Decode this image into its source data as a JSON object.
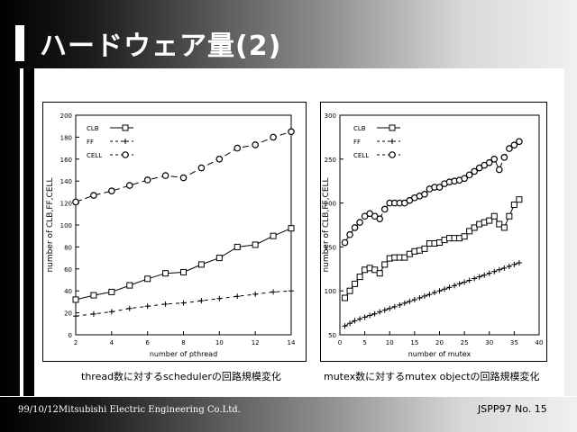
{
  "slide": {
    "title": "ハードウェア量(2)",
    "footer_left": "99/10/12Mitsubishi Electric Engineering Co.Ltd.",
    "footer_right": "JSPP97 No. 15"
  },
  "chart_data": [
    {
      "type": "line",
      "caption": "thread数に対するschedulerの回路規模変化",
      "xlabel": "number of pthread",
      "ylabel": "number of CLB,FF,CELL",
      "xlim": [
        2,
        14
      ],
      "ylim": [
        0,
        200
      ],
      "xticks": [
        2,
        4,
        6,
        8,
        10,
        12,
        14
      ],
      "yticks": [
        0,
        20,
        40,
        60,
        80,
        100,
        120,
        140,
        160,
        180,
        200
      ],
      "legend_position": "top-left",
      "series": [
        {
          "name": "CLB",
          "marker": "square",
          "x": [
            2,
            3,
            4,
            5,
            6,
            7,
            8,
            9,
            10,
            11,
            12,
            13,
            14
          ],
          "values": [
            32,
            36,
            39,
            45,
            51,
            56,
            57,
            64,
            70,
            80,
            82,
            90,
            97
          ]
        },
        {
          "name": "FF",
          "marker": "plus",
          "x": [
            2,
            3,
            4,
            5,
            6,
            7,
            8,
            9,
            10,
            11,
            12,
            13,
            14
          ],
          "values": [
            17,
            19,
            21,
            24,
            26,
            28,
            29,
            31,
            33,
            35,
            37,
            39,
            40
          ]
        },
        {
          "name": "CELL",
          "marker": "circle",
          "x": [
            2,
            3,
            4,
            5,
            6,
            7,
            8,
            9,
            10,
            11,
            12,
            13,
            14
          ],
          "values": [
            121,
            127,
            131,
            136,
            141,
            145,
            143,
            152,
            160,
            170,
            173,
            180,
            185
          ]
        }
      ]
    },
    {
      "type": "line",
      "caption": "mutex数に対するmutex objectの回路規模変化",
      "xlabel": "number of mutex",
      "ylabel": "number of CLB,FF,CELL",
      "xlim": [
        0,
        40
      ],
      "ylim": [
        50,
        300
      ],
      "xticks": [
        0,
        5,
        10,
        15,
        20,
        25,
        30,
        35,
        40
      ],
      "yticks": [
        50,
        100,
        150,
        200,
        250,
        300
      ],
      "legend_position": "top-left",
      "series": [
        {
          "name": "CLB",
          "marker": "square",
          "x": [
            1,
            2,
            3,
            4,
            5,
            6,
            7,
            8,
            9,
            10,
            11,
            12,
            13,
            14,
            15,
            16,
            17,
            18,
            19,
            20,
            21,
            22,
            23,
            24,
            25,
            26,
            27,
            28,
            29,
            30,
            31,
            32,
            33,
            34,
            35,
            36
          ],
          "values": [
            92,
            100,
            108,
            116,
            124,
            126,
            124,
            120,
            130,
            137,
            138,
            138,
            138,
            142,
            145,
            146,
            148,
            154,
            154,
            155,
            158,
            160,
            160,
            160,
            162,
            168,
            172,
            176,
            178,
            180,
            185,
            176,
            172,
            185,
            198,
            204
          ]
        },
        {
          "name": "FF",
          "marker": "plus",
          "x": [
            1,
            2,
            3,
            4,
            5,
            6,
            7,
            8,
            9,
            10,
            11,
            12,
            13,
            14,
            15,
            16,
            17,
            18,
            19,
            20,
            21,
            22,
            23,
            24,
            25,
            26,
            27,
            28,
            29,
            30,
            31,
            32,
            33,
            34,
            35,
            36
          ],
          "values": [
            60,
            63,
            66,
            68,
            70,
            72,
            74,
            76,
            78,
            80,
            82,
            84,
            86,
            88,
            90,
            92,
            94,
            96,
            98,
            100,
            102,
            104,
            106,
            108,
            110,
            112,
            114,
            116,
            118,
            120,
            122,
            124,
            126,
            128,
            130,
            132
          ]
        },
        {
          "name": "CELL",
          "marker": "circle",
          "x": [
            1,
            2,
            3,
            4,
            5,
            6,
            7,
            8,
            9,
            10,
            11,
            12,
            13,
            14,
            15,
            16,
            17,
            18,
            19,
            20,
            21,
            22,
            23,
            24,
            25,
            26,
            27,
            28,
            29,
            30,
            31,
            32,
            33,
            34,
            35,
            36
          ],
          "values": [
            155,
            164,
            172,
            178,
            185,
            188,
            185,
            182,
            193,
            200,
            200,
            200,
            200,
            203,
            206,
            208,
            210,
            216,
            218,
            218,
            222,
            224,
            225,
            226,
            228,
            232,
            236,
            240,
            243,
            246,
            250,
            238,
            252,
            262,
            266,
            270
          ]
        }
      ]
    }
  ]
}
